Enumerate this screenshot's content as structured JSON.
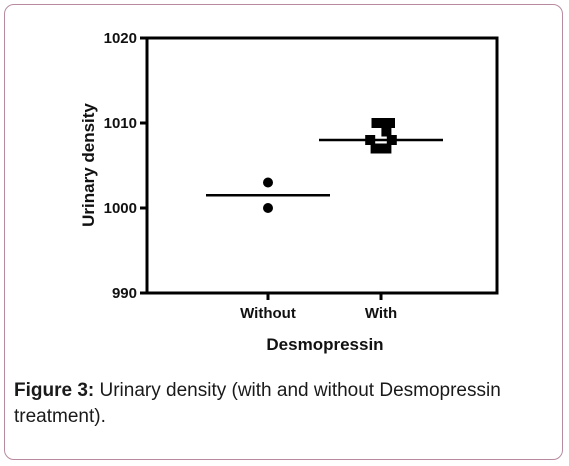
{
  "chart_data": {
    "type": "scatter",
    "xlabel": "Desmopressin",
    "ylabel": "Urinary density",
    "ylim": [
      990,
      1020
    ],
    "yticks": [
      990,
      1000,
      1010,
      1020
    ],
    "categories": [
      "Without",
      "With"
    ],
    "series": [
      {
        "category": "Without",
        "marker": "circle",
        "mean": 1001.5,
        "points": [
          {
            "offset": 0,
            "value": 1003
          },
          {
            "offset": 0,
            "value": 1000
          }
        ]
      },
      {
        "category": "With",
        "marker": "square",
        "mean": 1008,
        "points": [
          {
            "offset": -0.25,
            "value": 1010
          },
          {
            "offset": 0.0,
            "value": 1010
          },
          {
            "offset": 0.5,
            "value": 1010
          },
          {
            "offset": 0.3,
            "value": 1009
          },
          {
            "offset": -0.6,
            "value": 1008
          },
          {
            "offset": 0.6,
            "value": 1008
          },
          {
            "offset": -0.3,
            "value": 1007
          },
          {
            "offset": 0.0,
            "value": 1007
          },
          {
            "offset": 0.3,
            "value": 1007
          }
        ]
      }
    ],
    "grid": false,
    "marker_color": "#000000"
  },
  "caption": {
    "label": "Figure 3:",
    "text": " Urinary density (with and without Desmopressin treatment)."
  }
}
